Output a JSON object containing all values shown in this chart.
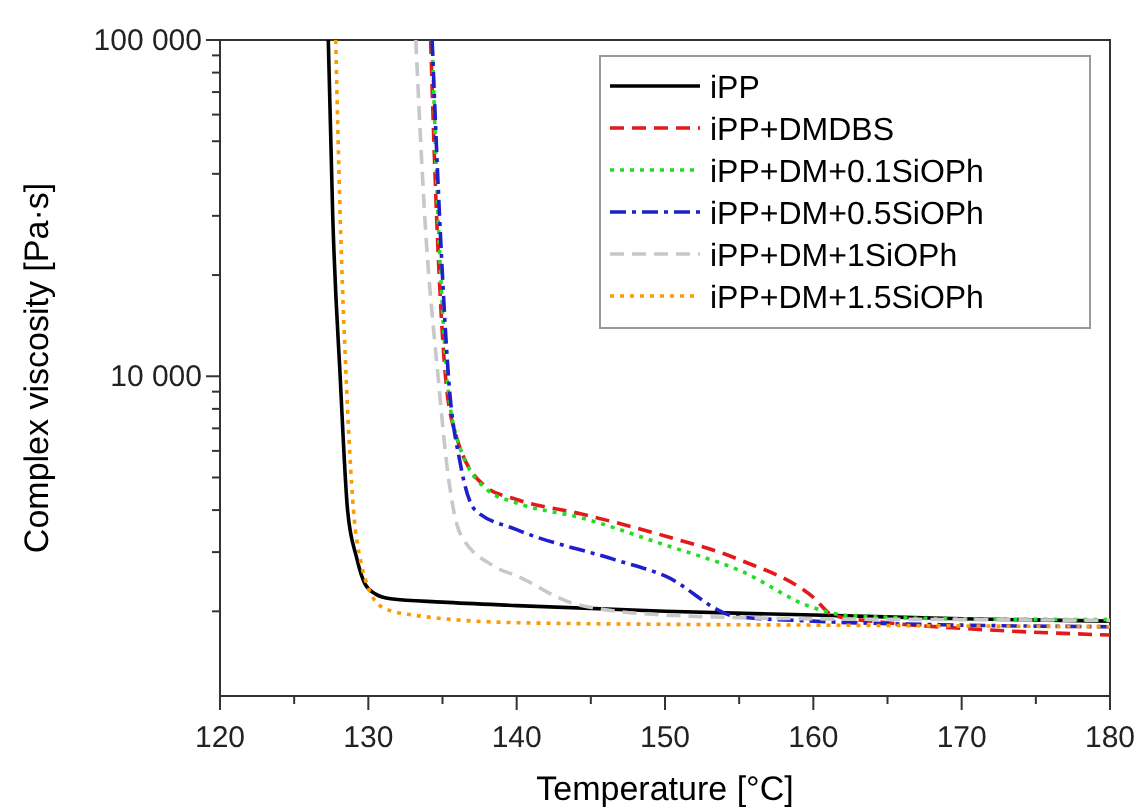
{
  "chart_data": {
    "type": "line",
    "xlabel": "Temperature [°C]",
    "ylabel": "Complex viscosity [Pa·s]",
    "log": "y",
    "xlim": [
      120,
      180
    ],
    "ylim": [
      1120,
      100000
    ],
    "xticks": [
      120,
      {
        "value": 125,
        "label": null
      },
      130,
      {
        "value": 135,
        "label": null
      },
      140,
      {
        "value": 145,
        "label": null
      },
      150,
      {
        "value": 155,
        "label": null
      },
      160,
      {
        "value": 165,
        "label": null
      },
      170,
      {
        "value": 175,
        "label": null
      },
      180
    ],
    "yticks": [
      {
        "value": 2000,
        "label": null
      },
      {
        "value": 3000,
        "label": null
      },
      {
        "value": 4000,
        "label": null
      },
      {
        "value": 5000,
        "label": null
      },
      {
        "value": 6000,
        "label": null
      },
      {
        "value": 7000,
        "label": null
      },
      {
        "value": 8000,
        "label": null
      },
      {
        "value": 9000,
        "label": null
      },
      {
        "value": 10000,
        "label": "10 000"
      },
      {
        "value": 20000,
        "label": null
      },
      {
        "value": 30000,
        "label": null
      },
      {
        "value": 40000,
        "label": null
      },
      {
        "value": 50000,
        "label": null
      },
      {
        "value": 60000,
        "label": null
      },
      {
        "value": 70000,
        "label": null
      },
      {
        "value": 80000,
        "label": null
      },
      {
        "value": 90000,
        "label": null
      },
      {
        "value": 100000,
        "label": "100 000"
      }
    ],
    "grid": false,
    "legend": "top right",
    "marker": "none",
    "series": [
      {
        "name": "iPP",
        "color": "#000000",
        "line_style": "solid",
        "x": [
          127.3,
          127.6,
          128.1,
          128.6,
          129.2,
          129.8,
          130.5,
          131.5,
          135,
          140,
          150,
          160,
          170,
          180
        ],
        "values": [
          100000,
          30000,
          10000,
          4000,
          2900,
          2400,
          2250,
          2180,
          2130,
          2080,
          2000,
          1950,
          1900,
          1870
        ]
      },
      {
        "name": "iPP+DMDBS",
        "color": "#e31a1c",
        "line_style": "dashed",
        "x": [
          134.2,
          134.6,
          135.2,
          135.9,
          137.9,
          140,
          144.3,
          150,
          155,
          160,
          161.3,
          165,
          170,
          180
        ],
        "values": [
          100000,
          30000,
          10000,
          6700,
          4700,
          4300,
          3900,
          3350,
          2850,
          2200,
          1950,
          1850,
          1780,
          1700
        ]
      },
      {
        "name": "iPP+DM+0.1SiOPh",
        "color": "#22dd22",
        "line_style": "dotted",
        "x": [
          134.3,
          134.7,
          135.3,
          136,
          138,
          140,
          144.3,
          150,
          155,
          160,
          162,
          165,
          170,
          180
        ],
        "values": [
          100000,
          30000,
          10000,
          6500,
          4600,
          4200,
          3800,
          3150,
          2650,
          2050,
          1950,
          1920,
          1900,
          1890
        ]
      },
      {
        "name": "iPP+DM+0.5SiOPh",
        "color": "#1f1fcc",
        "line_style": "dashdot",
        "x": [
          134.3,
          134.8,
          135.4,
          136.2,
          137.2,
          140,
          146.6,
          150,
          154.8,
          160,
          170,
          180
        ],
        "values": [
          100000,
          30000,
          10000,
          5500,
          4000,
          3500,
          2850,
          2550,
          1930,
          1870,
          1820,
          1800
        ]
      },
      {
        "name": "iPP+DM+1SiOPh",
        "color": "#c8c8c8",
        "line_style": "dashed",
        "x": [
          133.2,
          133.8,
          134.7,
          135.4,
          136.2,
          138.5,
          140,
          144,
          150,
          160,
          170,
          180
        ],
        "values": [
          100000,
          30000,
          10000,
          5000,
          3400,
          2720,
          2550,
          2100,
          1950,
          1900,
          1890,
          1880
        ]
      },
      {
        "name": "iPP+DM+1.5SiOPh",
        "color": "#ff9900",
        "line_style": "dotted",
        "x": [
          127.8,
          128.1,
          128.5,
          129,
          129.5,
          130,
          131,
          133,
          140,
          150,
          160,
          170,
          180
        ],
        "values": [
          100000,
          30000,
          10000,
          4000,
          2800,
          2350,
          2050,
          1950,
          1850,
          1830,
          1820,
          1810,
          1800
        ]
      }
    ]
  }
}
